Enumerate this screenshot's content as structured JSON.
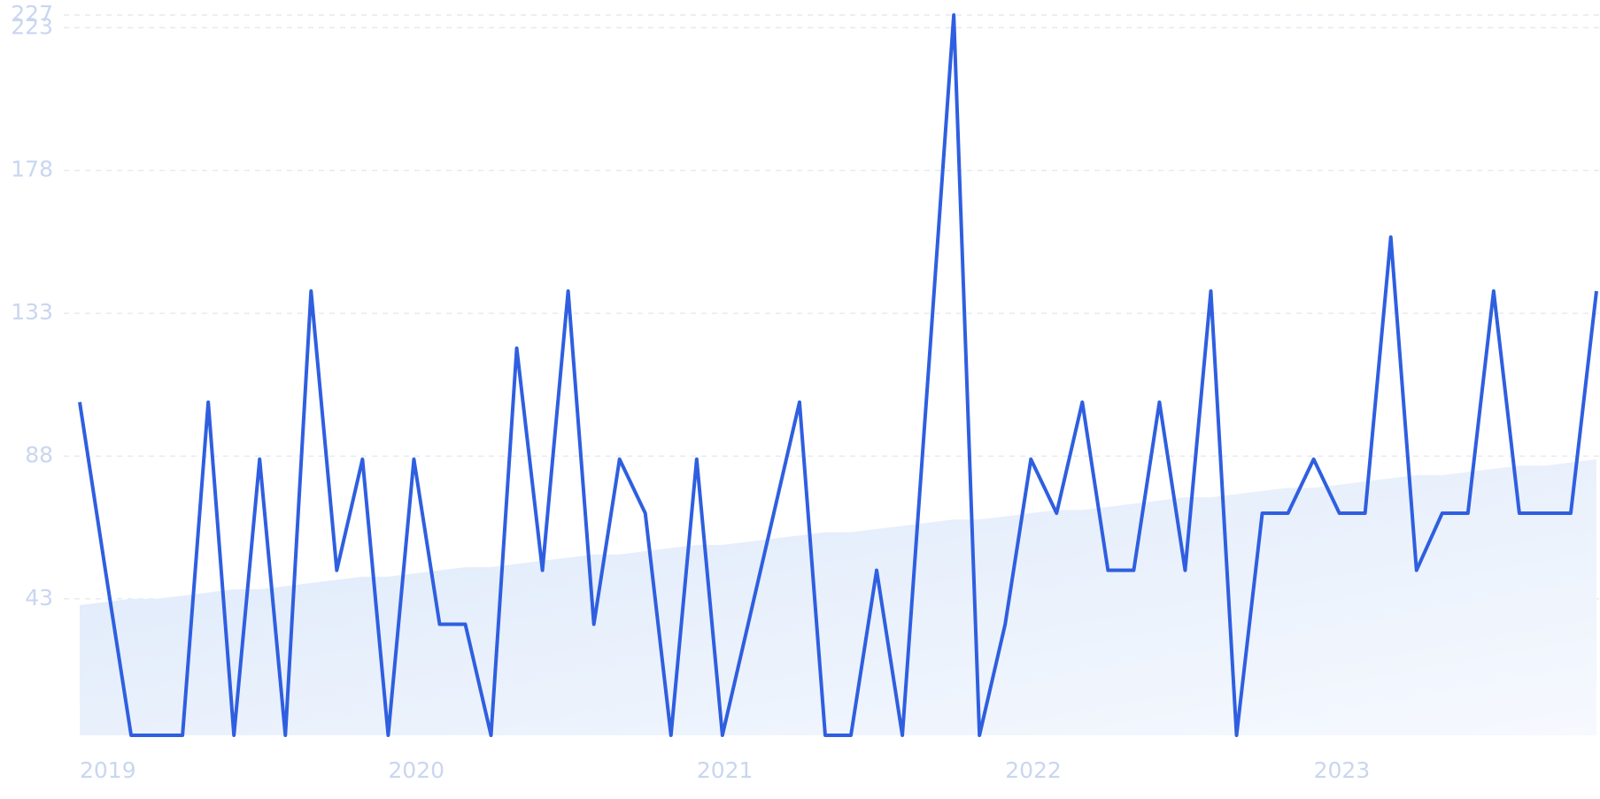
{
  "chart_data": {
    "type": "line",
    "categories": [
      "2019",
      null,
      null,
      null,
      null,
      null,
      null,
      null,
      null,
      null,
      null,
      null,
      "2020",
      null,
      null,
      null,
      null,
      null,
      null,
      null,
      null,
      null,
      null,
      null,
      "2021",
      null,
      null,
      null,
      null,
      null,
      null,
      null,
      null,
      null,
      null,
      null,
      "2022",
      null,
      null,
      null,
      null,
      null,
      null,
      null,
      null,
      null,
      null,
      null,
      "2023",
      null,
      null,
      null,
      null,
      null,
      null,
      null,
      null,
      null,
      null,
      null
    ],
    "series": [
      {
        "color": "#2f5fe0",
        "values": [
          105,
          52,
          0,
          0,
          0,
          105,
          0,
          87,
          0,
          140,
          52,
          87,
          0,
          87,
          35,
          35,
          0,
          122,
          52,
          140,
          35,
          87,
          70,
          0,
          87,
          0,
          35,
          70,
          105,
          0,
          0,
          52,
          0,
          113,
          227,
          0,
          35,
          87,
          70,
          105,
          52,
          52,
          105,
          52,
          140,
          0,
          70,
          70,
          87,
          70,
          70,
          157,
          52,
          70,
          70,
          140,
          70,
          70,
          70,
          140
        ]
      },
      {
        "type": "area",
        "color": "#dce8fa",
        "values": [
          41,
          42,
          43,
          43,
          44,
          45,
          46,
          46,
          47,
          48,
          49,
          50,
          50,
          51,
          52,
          53,
          53,
          54,
          55,
          56,
          57,
          57,
          58,
          59,
          60,
          60,
          61,
          62,
          63,
          64,
          64,
          65,
          66,
          67,
          68,
          68,
          69,
          70,
          71,
          71,
          72,
          73,
          74,
          75,
          75,
          76,
          77,
          78,
          78,
          79,
          80,
          81,
          82,
          82,
          83,
          84,
          85,
          85,
          86,
          87
        ]
      }
    ],
    "ylim": [
      0,
      227
    ],
    "yticks": [
      43,
      88,
      133,
      178,
      223,
      227
    ],
    "grid": true
  }
}
